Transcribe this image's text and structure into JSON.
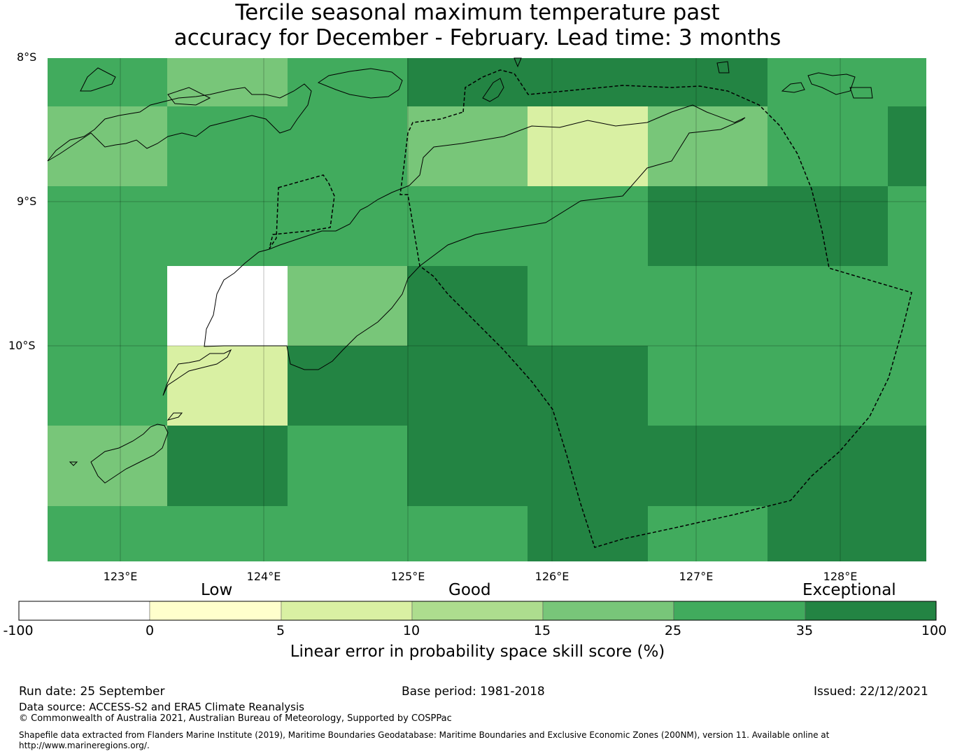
{
  "title": {
    "line1": "Tercile seasonal maximum temperature past",
    "line2": "accuracy for December - February. Lead time: 3 months"
  },
  "map": {
    "lat_labels": [
      "8°S",
      "9°S",
      "10°S"
    ],
    "lon_labels": [
      "123°E",
      "124°E",
      "125°E",
      "126°E",
      "127°E",
      "128°E"
    ],
    "grid": {
      "rows": [
        [
          "c25",
          "c15",
          "c25",
          "c35",
          "c35",
          "c35",
          "c25"
        ],
        [
          "c15",
          "c25",
          "c25",
          "c15",
          "c5",
          "c15",
          "c25",
          "c35"
        ],
        [
          "c25",
          "c25",
          "c25",
          "c25",
          "c25",
          "c35",
          "c35",
          "c25"
        ],
        [
          "c25",
          "cneg",
          "c15",
          "c35",
          "c25",
          "c25",
          "c25",
          "c25"
        ],
        [
          "c25",
          "c5",
          "c35",
          "c35",
          "c35",
          "c25",
          "c25",
          "c25"
        ],
        [
          "c15",
          "c35",
          "c25",
          "c35",
          "c35",
          "c35",
          "c35",
          "c35"
        ],
        [
          "c25",
          "c25",
          "c25",
          "c25",
          "c35",
          "c25",
          "c35",
          "c35"
        ]
      ]
    }
  },
  "colors": {
    "cneg": "#ffffff",
    "c0": "#ffffcc",
    "c5": "#d9f0a3",
    "c10": "#addd8e",
    "c15": "#78c679",
    "c25": "#41ab5d",
    "c35": "#238443"
  },
  "colorbar": {
    "category_labels": [
      "Low",
      "Good",
      "Exceptional"
    ],
    "ticks": [
      "-100",
      "0",
      "5",
      "10",
      "15",
      "25",
      "35",
      "100"
    ],
    "segments": [
      "cneg",
      "c0",
      "c5",
      "c10",
      "c15",
      "c25",
      "c35"
    ],
    "label": "Linear error in probability space skill score (%)"
  },
  "footer": {
    "run_date": "Run date: 25 September",
    "base_period": "Base period: 1981-2018",
    "issued": "Issued: 22/12/2021",
    "data_source": "Data source: ACCESS-S2 and ERA5 Climate Reanalysis",
    "copyright": "© Commonwealth of Australia 2021, Australian Bureau of Meteorology, Supported by COSPPac",
    "shapefile_line1": "Shapefile data extracted from Flanders Marine Institute (2019), Maritime Boundaries Geodatabase: Maritime Boundaries and Exclusive Economic Zones (200NM), version 11. Available online at",
    "shapefile_line2": "http://www.marineregions.org/."
  }
}
